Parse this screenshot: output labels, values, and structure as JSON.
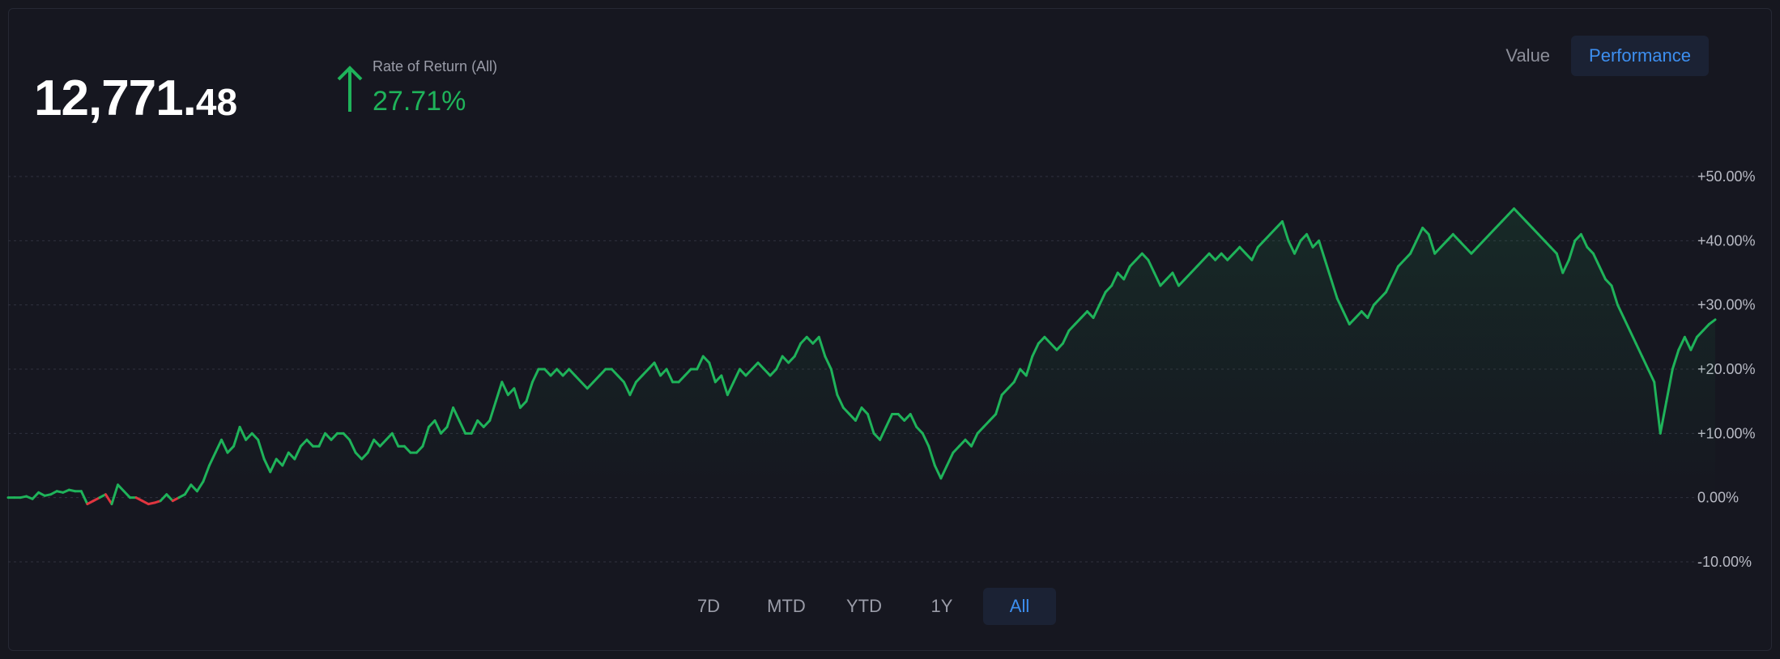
{
  "header": {
    "value_int": "12,771.",
    "value_dec": "48",
    "ror_label": "Rate of Return (All)",
    "ror_value": "27.71%"
  },
  "view_toggle": {
    "value_label": "Value",
    "performance_label": "Performance",
    "selected": "Performance"
  },
  "ranges": {
    "items": [
      "7D",
      "MTD",
      "YTD",
      "1Y",
      "All"
    ],
    "selected": "All"
  },
  "colors": {
    "positive": "#1fb35a",
    "negative": "#e0353f",
    "accent": "#3d8ff0",
    "background": "#161720"
  },
  "chart_data": {
    "type": "line",
    "ylim": [
      -10,
      50
    ],
    "yticks": [
      "+50.00%",
      "+40.00%",
      "+30.00%",
      "+20.00%",
      "+10.00%",
      "0.00%",
      "-10.00%"
    ],
    "grid": true,
    "series": [
      {
        "values": [
          0,
          0,
          0,
          0.2,
          -0.2,
          0.8,
          0.3,
          0.5,
          1,
          0.8,
          1.2,
          1,
          1,
          -1,
          -0.5,
          0,
          0.5,
          -1,
          2,
          1,
          0,
          0,
          -0.5,
          -1,
          -0.8,
          -0.5,
          0.5,
          -0.5,
          0,
          0.5,
          2,
          1,
          2.5,
          5,
          7,
          9,
          7,
          8,
          11,
          9,
          10,
          9,
          6,
          4,
          6,
          5,
          7,
          6,
          8,
          9,
          8,
          8,
          10,
          9,
          10,
          10,
          9,
          7,
          6,
          7,
          9,
          8,
          9,
          10,
          8,
          8,
          7,
          7,
          8,
          11,
          12,
          10,
          11,
          14,
          12,
          10,
          10,
          12,
          11,
          12,
          15,
          18,
          16,
          17,
          14,
          15,
          18,
          20,
          20,
          19,
          20,
          19,
          20,
          19,
          18,
          17,
          18,
          19,
          20,
          20,
          19,
          18,
          16,
          18,
          19,
          20,
          21,
          19,
          20,
          18,
          18,
          19,
          20,
          20,
          22,
          21,
          18,
          19,
          16,
          18,
          20,
          19,
          20,
          21,
          20,
          19,
          20,
          22,
          21,
          22,
          24,
          25,
          24,
          25,
          22,
          20,
          16,
          14,
          13,
          12,
          14,
          13,
          10,
          9,
          11,
          13,
          13,
          12,
          13,
          11,
          10,
          8,
          5,
          3,
          5,
          7,
          8,
          9,
          8,
          10,
          11,
          12,
          13,
          16,
          17,
          18,
          20,
          19,
          22,
          24,
          25,
          24,
          23,
          24,
          26,
          27,
          28,
          29,
          28,
          30,
          32,
          33,
          35,
          34,
          36,
          37,
          38,
          37,
          35,
          33,
          34,
          35,
          33,
          34,
          35,
          36,
          37,
          38,
          37,
          38,
          37,
          38,
          39,
          38,
          37,
          39,
          40,
          41,
          42,
          43,
          40,
          38,
          40,
          41,
          39,
          40,
          37,
          34,
          31,
          29,
          27,
          28,
          29,
          28,
          30,
          31,
          32,
          34,
          36,
          37,
          38,
          40,
          42,
          41,
          38,
          39,
          40,
          41,
          40,
          39,
          38,
          39,
          40,
          41,
          42,
          43,
          44,
          45,
          44,
          43,
          42,
          41,
          40,
          39,
          38,
          35,
          37,
          40,
          41,
          39,
          38,
          36,
          34,
          33,
          30,
          28,
          26,
          24,
          22,
          20,
          18,
          10,
          15,
          20,
          23,
          25,
          23,
          25,
          26,
          27,
          27.71
        ]
      }
    ]
  }
}
